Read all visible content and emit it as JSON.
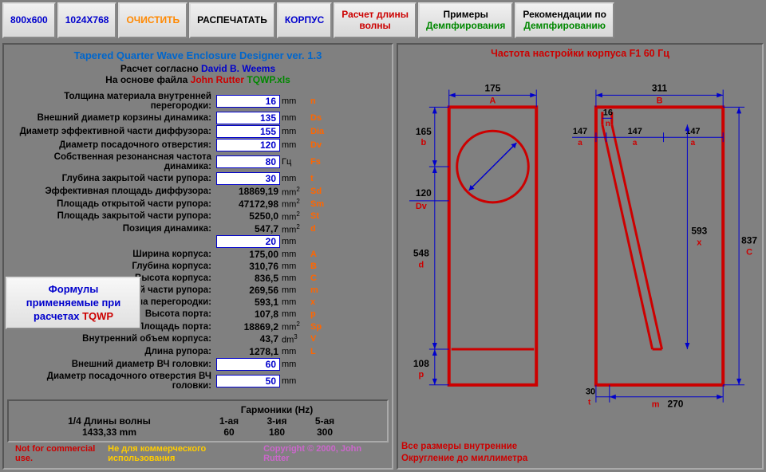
{
  "buttons": {
    "b800": "800x600",
    "b1024": "1024X768",
    "clear": "ОЧИСТИТЬ",
    "print": "РАСПЕЧАТАТЬ",
    "case": "КОРПУС",
    "wave": "Расчет длины\nволны",
    "damp_ex": "Примеры",
    "damp_ex2": "Демпфирования",
    "damp_rec": "Рекомендации по",
    "damp_rec2": "Демпфированию"
  },
  "title": "Tapered Quarter Wave Enclosure Designer ver. 1.3",
  "subtitle": {
    "t1": "Расчет согласно",
    "t1b": "David B. Weems",
    "t2": "На основе файла",
    "t2r": "John Rutter",
    "t2g": "TQWP.xls"
  },
  "formula_btn": {
    "l1": "Формулы",
    "l2": "применяемые при",
    "l3": "расчетах",
    "l3r": "TQWP"
  },
  "params": [
    {
      "label": "Толщина материала внутренней перегородки:",
      "value": "16",
      "unit": "mm",
      "sym": "n",
      "input": true
    },
    {
      "label": "Внешний диаметр корзины динамика:",
      "value": "135",
      "unit": "mm",
      "sym": "Ds",
      "input": true
    },
    {
      "label": "Диаметр эффективной части диффузора:",
      "value": "155",
      "unit": "mm",
      "sym": "Dia",
      "input": true
    },
    {
      "label": "Диаметр посадочного отверстия:",
      "value": "120",
      "unit": "mm",
      "sym": "Dv",
      "input": true
    },
    {
      "label": "Собственная резонансная частота динамика:",
      "value": "80",
      "unit": "Гц",
      "sym": "Fs",
      "input": true
    },
    {
      "label": "Глубина закрытой части рупора:",
      "value": "30",
      "unit": "mm",
      "sym": "t",
      "input": true
    },
    {
      "label": "Эффективная площадь диффузора:",
      "value": "18869,19",
      "unit": "mm²",
      "sym": "Sd"
    },
    {
      "label": "Площадь открытой части рупора:",
      "value": "47172,98",
      "unit": "mm²",
      "sym": "Sm"
    },
    {
      "label": "Площадь закрытой части рупора:",
      "value": "5250,0",
      "unit": "mm²",
      "sym": "St"
    },
    {
      "label": "Позиция динамика:",
      "value": "547,7",
      "unit": "mm²",
      "sym": "d"
    },
    {
      "label": "",
      "value": "20",
      "unit": "mm",
      "sym": "",
      "input": true
    },
    {
      "label": "Ширина корпуса:",
      "value": "175,00",
      "unit": "mm",
      "sym": "A"
    },
    {
      "label": "Глубина корпуса:",
      "value": "310,76",
      "unit": "mm",
      "sym": "B"
    },
    {
      "label": "Высота корпуса:",
      "value": "836,5",
      "unit": "mm",
      "sym": "C"
    },
    {
      "label": "Глубина открытой части рупора:",
      "value": "269,56",
      "unit": "mm",
      "sym": "m"
    },
    {
      "label": "Длина перегородки:",
      "value": "593,1",
      "unit": "mm",
      "sym": "x"
    },
    {
      "label": "Высота порта:",
      "value": "107,8",
      "unit": "mm",
      "sym": "p"
    },
    {
      "label": "Площадь порта:",
      "value": "18869,2",
      "unit": "mm²",
      "sym": "Sp"
    },
    {
      "label": "Внутренний объем корпуса:",
      "value": "43,7",
      "unit": "dm³",
      "sym": "V"
    },
    {
      "label": "Длина рупора:",
      "value": "1278,1",
      "unit": "mm",
      "sym": "L"
    },
    {
      "label": "Внешний диаметр ВЧ головки:",
      "value": "60",
      "unit": "mm",
      "sym": "",
      "input": true
    },
    {
      "label": "Диаметр посадочного отверстия ВЧ головки:",
      "value": "50",
      "unit": "mm",
      "sym": "",
      "input": true
    }
  ],
  "harmonics": {
    "title": "Гармоники (Hz)",
    "row1_label": "1/4 Длины волны",
    "cols": [
      "1-ая",
      "3-ия",
      "5-ая"
    ],
    "wave_len": "1433,33 mm",
    "vals": [
      "60",
      "180",
      "300"
    ]
  },
  "footer": {
    "left": "Not for commercial use.",
    "mid": "Не для коммерческого использования",
    "right": "Copyright © 2000, John Rutter"
  },
  "right_title": "Частота настройки корпуса F1  60  Гц",
  "right_footer1": "Все размеры внутренние",
  "right_footer2": "Округление до миллиметра",
  "diagram": {
    "front": {
      "A": "175",
      "b": "165",
      "Dv": "120",
      "d": "548",
      "p": "108"
    },
    "side": {
      "B": "311",
      "n": "16",
      "a1": "147",
      "a2": "147",
      "a3": "147",
      "x": "593",
      "C": "837",
      "t": "30",
      "m": "270"
    }
  }
}
